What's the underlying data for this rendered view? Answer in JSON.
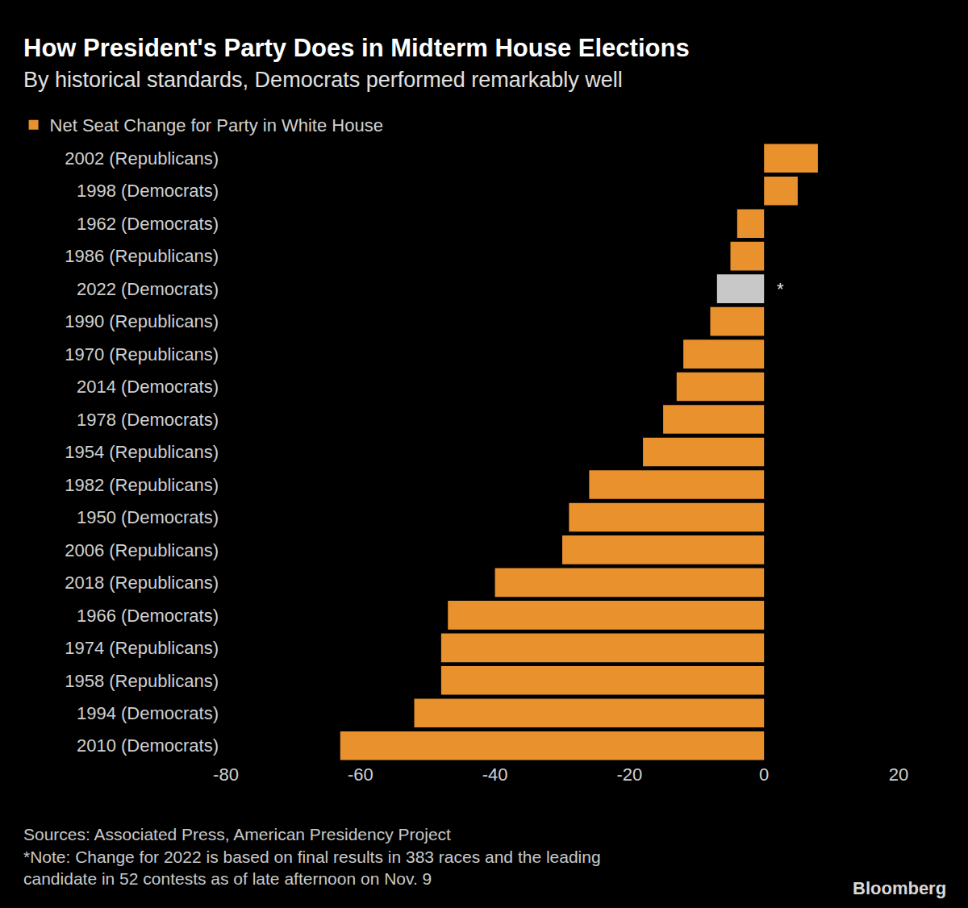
{
  "chart_data": {
    "type": "bar",
    "orientation": "horizontal",
    "title": "How President's Party Does in Midterm House Elections",
    "subtitle": "By historical standards, Democrats performed remarkably well",
    "categories": [
      "2002 (Republicans)",
      "1998 (Democrats)",
      "1962 (Democrats)",
      "1986 (Republicans)",
      "2022 (Democrats)",
      "1990 (Republicans)",
      "1970 (Republicans)",
      "2014 (Democrats)",
      "1978 (Democrats)",
      "1954 (Republicans)",
      "1982 (Republicans)",
      "1950 (Democrats)",
      "2006 (Republicans)",
      "2018 (Republicans)",
      "1966 (Democrats)",
      "1974 (Republicans)",
      "1958 (Republicans)",
      "1994 (Democrats)",
      "2010 (Democrats)"
    ],
    "series": [
      {
        "name": "Net Seat Change for Party in White House",
        "color": "#e8912d",
        "colors": [
          "#e8912d",
          "#e8912d",
          "#e8912d",
          "#e8912d",
          "#c8c8c8",
          "#e8912d",
          "#e8912d",
          "#e8912d",
          "#e8912d",
          "#e8912d",
          "#e8912d",
          "#e8912d",
          "#e8912d",
          "#e8912d",
          "#e8912d",
          "#e8912d",
          "#e8912d",
          "#e8912d",
          "#e8912d"
        ],
        "values": [
          8,
          5,
          -4,
          -5,
          -7,
          -8,
          -12,
          -13,
          -15,
          -18,
          -26,
          -29,
          -30,
          -40,
          -47,
          -48,
          -48,
          -52,
          -63
        ]
      }
    ],
    "xlim": [
      -80,
      20
    ],
    "xticks": [
      -80,
      -60,
      -40,
      -20,
      0,
      20
    ],
    "grid": false,
    "legend": "top-left",
    "annotations": [
      {
        "text": "*",
        "category": "2022 (Democrats)"
      }
    ],
    "notes": [
      "Sources: Associated Press, American Presidency Project",
      "*Note: Change for 2022 is based on final results in 383 races and the leading",
      "candidate in 52 contests as of late afternoon on Nov. 9"
    ],
    "credit": "Bloomberg"
  }
}
